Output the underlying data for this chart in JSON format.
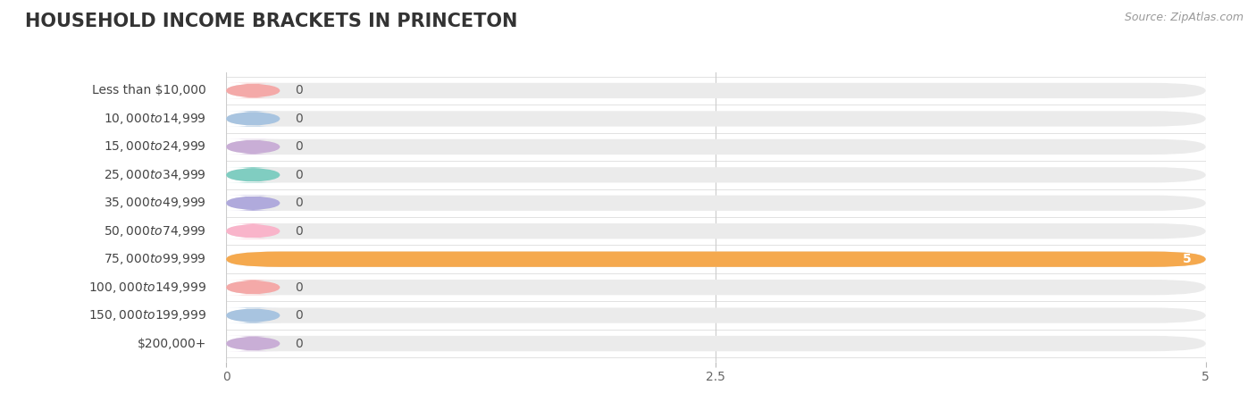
{
  "title": "HOUSEHOLD INCOME BRACKETS IN PRINCETON",
  "source": "Source: ZipAtlas.com",
  "categories": [
    "Less than $10,000",
    "$10,000 to $14,999",
    "$15,000 to $24,999",
    "$25,000 to $34,999",
    "$35,000 to $49,999",
    "$50,000 to $74,999",
    "$75,000 to $99,999",
    "$100,000 to $149,999",
    "$150,000 to $199,999",
    "$200,000+"
  ],
  "values": [
    0,
    0,
    0,
    0,
    0,
    0,
    5,
    0,
    0,
    0
  ],
  "bar_colors": [
    "#f4a9a8",
    "#a8c4e0",
    "#c9aed6",
    "#80cdc1",
    "#b0aadc",
    "#f9b4ca",
    "#f5a94e",
    "#f4a9a8",
    "#a8c4e0",
    "#c9aed6"
  ],
  "bg_bar_color": "#ebebeb",
  "xlim": [
    0,
    5
  ],
  "xticks": [
    0,
    2.5,
    5
  ],
  "background_color": "#ffffff",
  "title_fontsize": 15,
  "label_fontsize": 10,
  "tick_fontsize": 10,
  "value_label_fontsize": 10
}
